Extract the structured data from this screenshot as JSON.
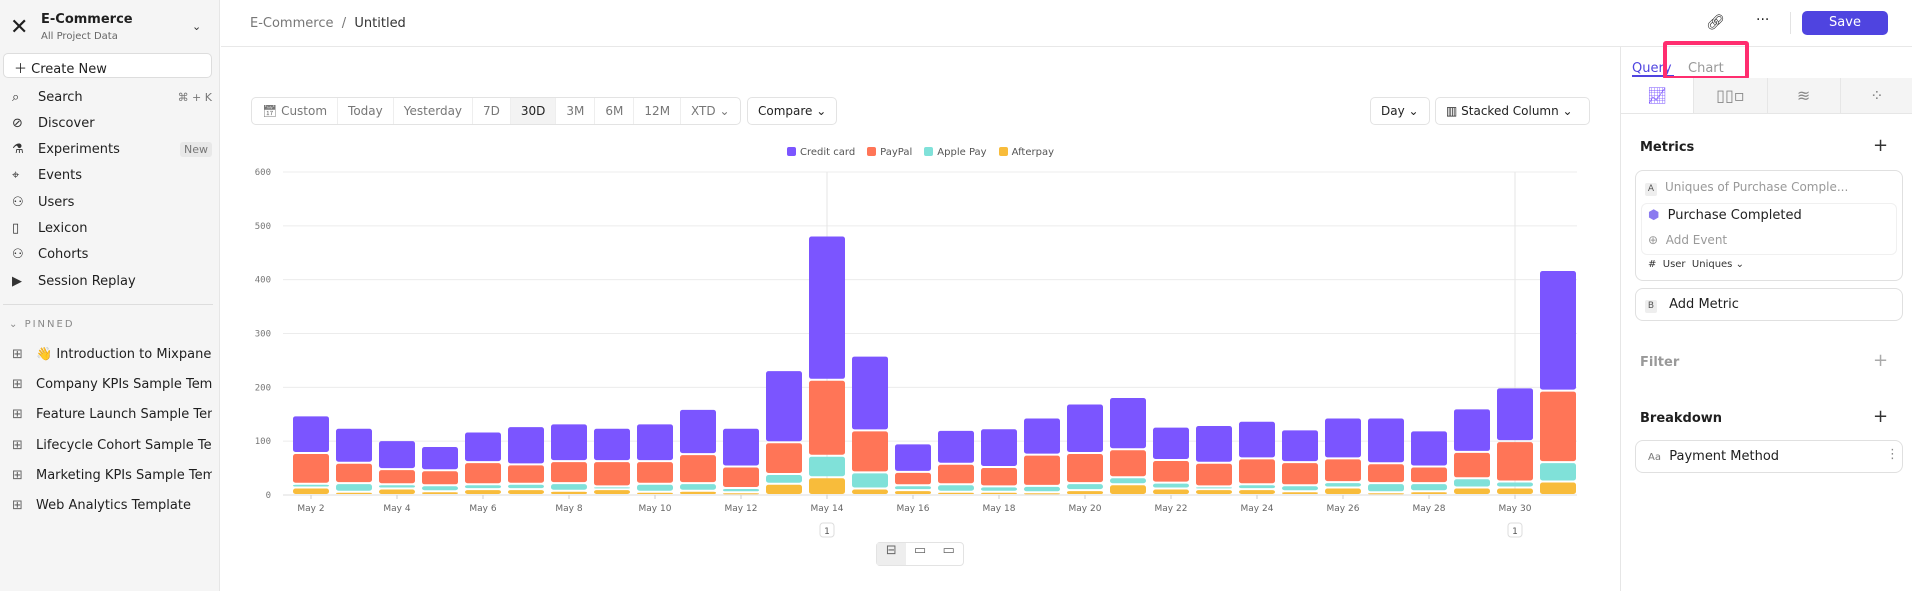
{
  "sidebar": {
    "project": "E-Commerce",
    "subtitle": "All Project Data",
    "create_new": "Create New",
    "items": [
      {
        "label": "Search",
        "icon": "search-icon",
        "shortcut": "⌘ + K"
      },
      {
        "label": "Discover",
        "icon": "compass-icon"
      },
      {
        "label": "Experiments",
        "icon": "flask-icon",
        "badge": "New"
      },
      {
        "label": "Events",
        "icon": "cursor-click-icon"
      },
      {
        "label": "Users",
        "icon": "users-icon"
      },
      {
        "label": "Lexicon",
        "icon": "book-icon"
      },
      {
        "label": "Cohorts",
        "icon": "cohorts-icon"
      },
      {
        "label": "Session Replay",
        "icon": "play-icon"
      }
    ],
    "pinned_label": "PINNED",
    "pinned": [
      "👋 Introduction to Mixpanel Bo",
      "Company KPIs Sample Template",
      "Feature Launch Sample Templa",
      "Lifecycle Cohort Sample Temp",
      "Marketing KPIs Sample Templat",
      "Web Analytics Template"
    ]
  },
  "header": {
    "breadcrumb_root": "E-Commerce",
    "breadcrumb_sep": "/",
    "title": "Untitled",
    "save": "Save"
  },
  "toolbar": {
    "ranges": [
      "Custom",
      "Today",
      "Yesterday",
      "7D",
      "30D",
      "3M",
      "6M",
      "12M",
      "XTD ⌄"
    ],
    "selected": "30D",
    "compare": "Compare ⌄",
    "interval": "Day ⌄",
    "chart_type": "Stacked Column ⌄"
  },
  "annotations": [
    "1",
    "1"
  ],
  "panel": {
    "tabs": [
      "Query",
      "Chart"
    ],
    "active_tab": "Query",
    "metrics": "Metrics",
    "metric_a_letter": "A",
    "metric_a": "Uniques of Purchase Comple...",
    "event": "Purchase Completed",
    "add_event": "Add Event",
    "measure_hash": "#",
    "measure_user": "User",
    "measure": "Uniques ⌄",
    "metric_b_letter": "B",
    "add_metric": "Add Metric",
    "filter": "Filter",
    "breakdown": "Breakdown",
    "breakdown_type": "Aa",
    "breakdown_value": "Payment Method"
  },
  "colors": {
    "accent": "#4f44e0",
    "highlight": "#ff2d6f"
  },
  "chart_data": {
    "type": "bar",
    "stacked": true,
    "ylim": [
      0,
      600
    ],
    "yticks": [
      0,
      100,
      200,
      300,
      400,
      500,
      600
    ],
    "grid": true,
    "legend": "top",
    "categories": [
      "May 2",
      "May 3",
      "May 4",
      "May 5",
      "May 6",
      "May 7",
      "May 8",
      "May 9",
      "May 10",
      "May 11",
      "May 12",
      "May 13",
      "May 14",
      "May 15",
      "May 16",
      "May 17",
      "May 18",
      "May 19",
      "May 20",
      "May 21",
      "May 22",
      "May 23",
      "May 24",
      "May 25",
      "May 26",
      "May 27",
      "May 28",
      "May 29",
      "May 30",
      "May 31"
    ],
    "xtick_labels": [
      "May 2",
      "May 4",
      "May 6",
      "May 8",
      "May 10",
      "May 12",
      "May 14",
      "May 16",
      "May 18",
      "May 20",
      "May 22",
      "May 24",
      "May 26",
      "May 28",
      "May 30"
    ],
    "series": [
      {
        "name": "Afterpay",
        "color": "#F8BC3B",
        "values": [
          14,
          6,
          12,
          7,
          11,
          11,
          8,
          11,
          6,
          8,
          5,
          21,
          33,
          12,
          9,
          6,
          6,
          5,
          9,
          20,
          12,
          11,
          11,
          7,
          14,
          5,
          7,
          14,
          14,
          25
        ]
      },
      {
        "name": "Apple Pay",
        "color": "#80E1D9",
        "values": [
          7,
          16,
          8,
          11,
          9,
          10,
          14,
          5,
          15,
          14,
          8,
          18,
          40,
          30,
          9,
          14,
          10,
          12,
          13,
          13,
          11,
          5,
          9,
          11,
          10,
          17,
          15,
          17,
          11,
          36
        ]
      },
      {
        "name": "PayPal",
        "color": "#FF7557",
        "values": [
          57,
          38,
          28,
          28,
          41,
          36,
          41,
          47,
          42,
          54,
          40,
          59,
          141,
          78,
          25,
          38,
          36,
          58,
          56,
          52,
          42,
          44,
          48,
          43,
          44,
          37,
          31,
          49,
          75,
          133
        ]
      },
      {
        "name": "Credit card",
        "color": "#7B55FF",
        "values": [
          70,
          65,
          54,
          45,
          57,
          71,
          70,
          62,
          70,
          84,
          72,
          134,
          268,
          139,
          53,
          63,
          72,
          69,
          92,
          97,
          62,
          70,
          70,
          61,
          76,
          85,
          67,
          81,
          100,
          224
        ]
      }
    ]
  }
}
